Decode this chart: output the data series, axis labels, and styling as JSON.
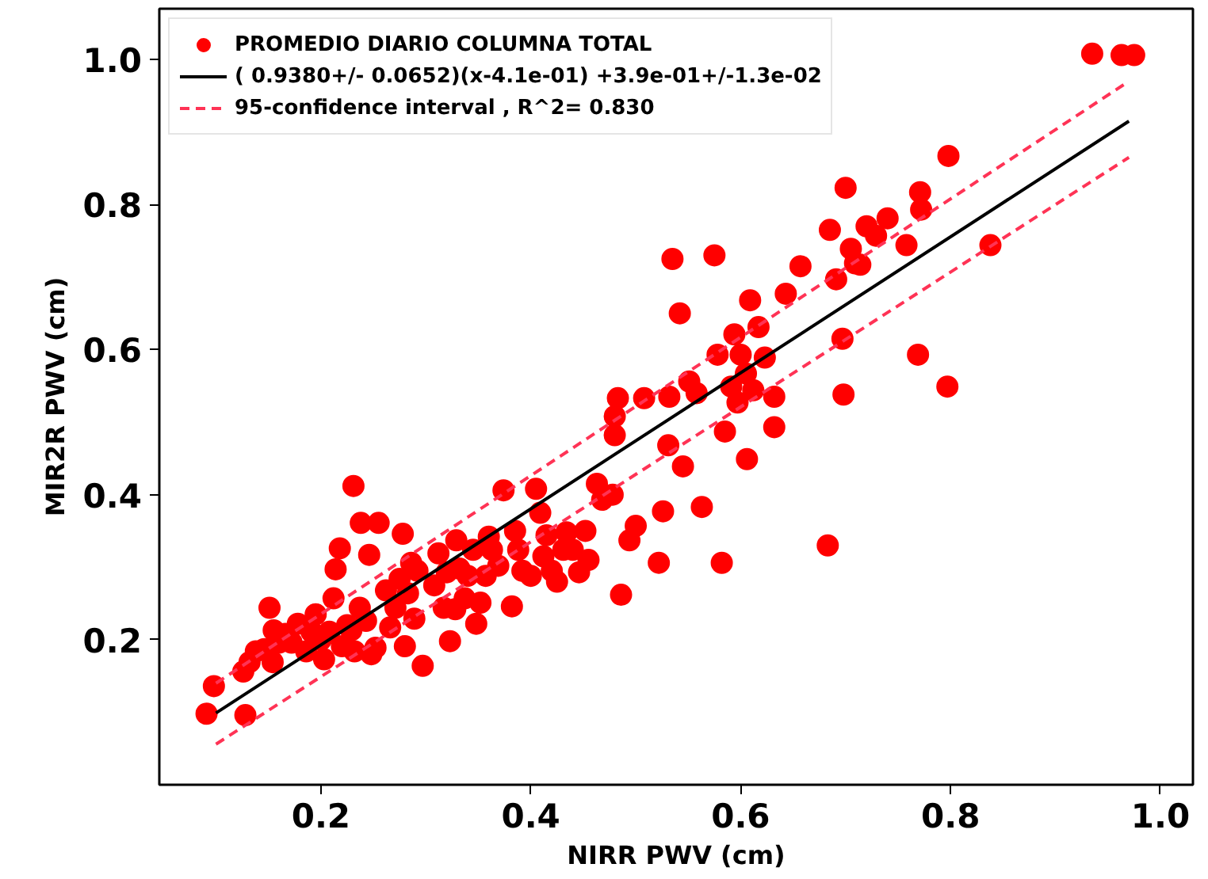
{
  "chart_data": {
    "type": "scatter",
    "xlabel": "NIRR PWV (cm)",
    "ylabel": "MIR2R PWV (cm)",
    "xlim": [
      0.046,
      1.031
    ],
    "ylim": [
      0.0,
      1.07
    ],
    "xticks": [
      0.2,
      0.4,
      0.6,
      0.8,
      {
        "value": 1.0,
        "label": "1.0"
      }
    ],
    "yticks": [
      0.2,
      0.4,
      0.6,
      0.8,
      {
        "value": 1.0,
        "label": "1.0"
      }
    ],
    "legend": "top left",
    "series": [
      {
        "name": "PROMEDIO DIARIO COLUMNA TOTAL",
        "marker": "circle",
        "color": "#ff0000",
        "x": [
          0.091,
          0.098,
          0.128,
          0.126,
          0.132,
          0.138,
          0.146,
          0.151,
          0.155,
          0.16,
          0.154,
          0.166,
          0.172,
          0.178,
          0.186,
          0.191,
          0.195,
          0.2,
          0.203,
          0.208,
          0.212,
          0.22,
          0.225,
          0.229,
          0.232,
          0.237,
          0.243,
          0.248,
          0.252,
          0.214,
          0.218,
          0.231,
          0.238,
          0.246,
          0.255,
          0.262,
          0.266,
          0.271,
          0.275,
          0.278,
          0.28,
          0.283,
          0.286,
          0.289,
          0.292,
          0.297,
          0.308,
          0.312,
          0.317,
          0.32,
          0.323,
          0.328,
          0.329,
          0.332,
          0.337,
          0.34,
          0.345,
          0.348,
          0.352,
          0.357,
          0.36,
          0.363,
          0.369,
          0.374,
          0.382,
          0.385,
          0.388,
          0.392,
          0.4,
          0.405,
          0.409,
          0.412,
          0.415,
          0.42,
          0.425,
          0.431,
          0.434,
          0.44,
          0.446,
          0.452,
          0.455,
          0.463,
          0.468,
          0.478,
          0.486,
          0.48,
          0.48,
          0.483,
          0.494,
          0.5,
          0.508,
          0.522,
          0.526,
          0.531,
          0.532,
          0.535,
          0.542,
          0.545,
          0.551,
          0.558,
          0.563,
          0.575,
          0.578,
          0.582,
          0.585,
          0.591,
          0.594,
          0.597,
          0.6,
          0.605,
          0.606,
          0.609,
          0.612,
          0.617,
          0.623,
          0.632,
          0.632,
          0.643,
          0.657,
          0.683,
          0.685,
          0.691,
          0.697,
          0.698,
          0.7,
          0.705,
          0.709,
          0.714,
          0.72,
          0.729,
          0.74,
          0.758,
          0.771,
          0.772,
          0.769,
          0.797,
          0.798,
          0.838,
          0.935,
          0.963,
          0.975
        ],
        "values": [
          0.098,
          0.136,
          0.096,
          0.156,
          0.169,
          0.184,
          0.187,
          0.244,
          0.213,
          0.196,
          0.169,
          0.208,
          0.196,
          0.222,
          0.184,
          0.211,
          0.235,
          0.2,
          0.173,
          0.211,
          0.257,
          0.191,
          0.22,
          0.213,
          0.184,
          0.244,
          0.226,
          0.18,
          0.189,
          0.297,
          0.326,
          0.412,
          0.361,
          0.317,
          0.361,
          0.268,
          0.217,
          0.244,
          0.284,
          0.346,
          0.191,
          0.264,
          0.306,
          0.229,
          0.295,
          0.164,
          0.275,
          0.319,
          0.244,
          0.293,
          0.198,
          0.242,
          0.337,
          0.298,
          0.257,
          0.288,
          0.324,
          0.222,
          0.251,
          0.288,
          0.342,
          0.324,
          0.302,
          0.406,
          0.246,
          0.35,
          0.324,
          0.295,
          0.288,
          0.408,
          0.375,
          0.315,
          0.344,
          0.295,
          0.28,
          0.324,
          0.348,
          0.324,
          0.293,
          0.35,
          0.31,
          0.415,
          0.393,
          0.4,
          0.262,
          0.482,
          0.508,
          0.533,
          0.337,
          0.357,
          0.533,
          0.306,
          0.377,
          0.468,
          0.535,
          0.725,
          0.65,
          0.439,
          0.556,
          0.54,
          0.383,
          0.73,
          0.593,
          0.306,
          0.487,
          0.549,
          0.621,
          0.527,
          0.593,
          0.567,
          0.449,
          0.668,
          0.544,
          0.631,
          0.589,
          0.535,
          0.493,
          0.677,
          0.715,
          0.33,
          0.765,
          0.697,
          0.615,
          0.538,
          0.823,
          0.739,
          0.719,
          0.717,
          0.77,
          0.757,
          0.781,
          0.744,
          0.817,
          0.793,
          0.593,
          0.549,
          0.867,
          0.744,
          1.008,
          1.006,
          1.006
        ]
      },
      {
        "name": "( 0.9380+/- 0.0652)(x-4.1e-01) +3.9e-01+/-1.3e-02",
        "type": "line",
        "color": "#000000",
        "line_style": "solid",
        "x": [
          0.1,
          0.97
        ],
        "values": [
          0.099,
          0.915
        ]
      },
      {
        "name": "95-confidence interval , R^2= 0.830",
        "type": "line",
        "color": "#ff3355",
        "line_style": "dashed",
        "x": [
          0.1,
          0.97
        ],
        "values": [
          0.14,
          0.97
        ]
      },
      {
        "type": "line",
        "color": "#ff3355",
        "line_style": "dashed",
        "x": [
          0.1,
          0.97
        ],
        "values": [
          0.056,
          0.865
        ]
      }
    ]
  }
}
